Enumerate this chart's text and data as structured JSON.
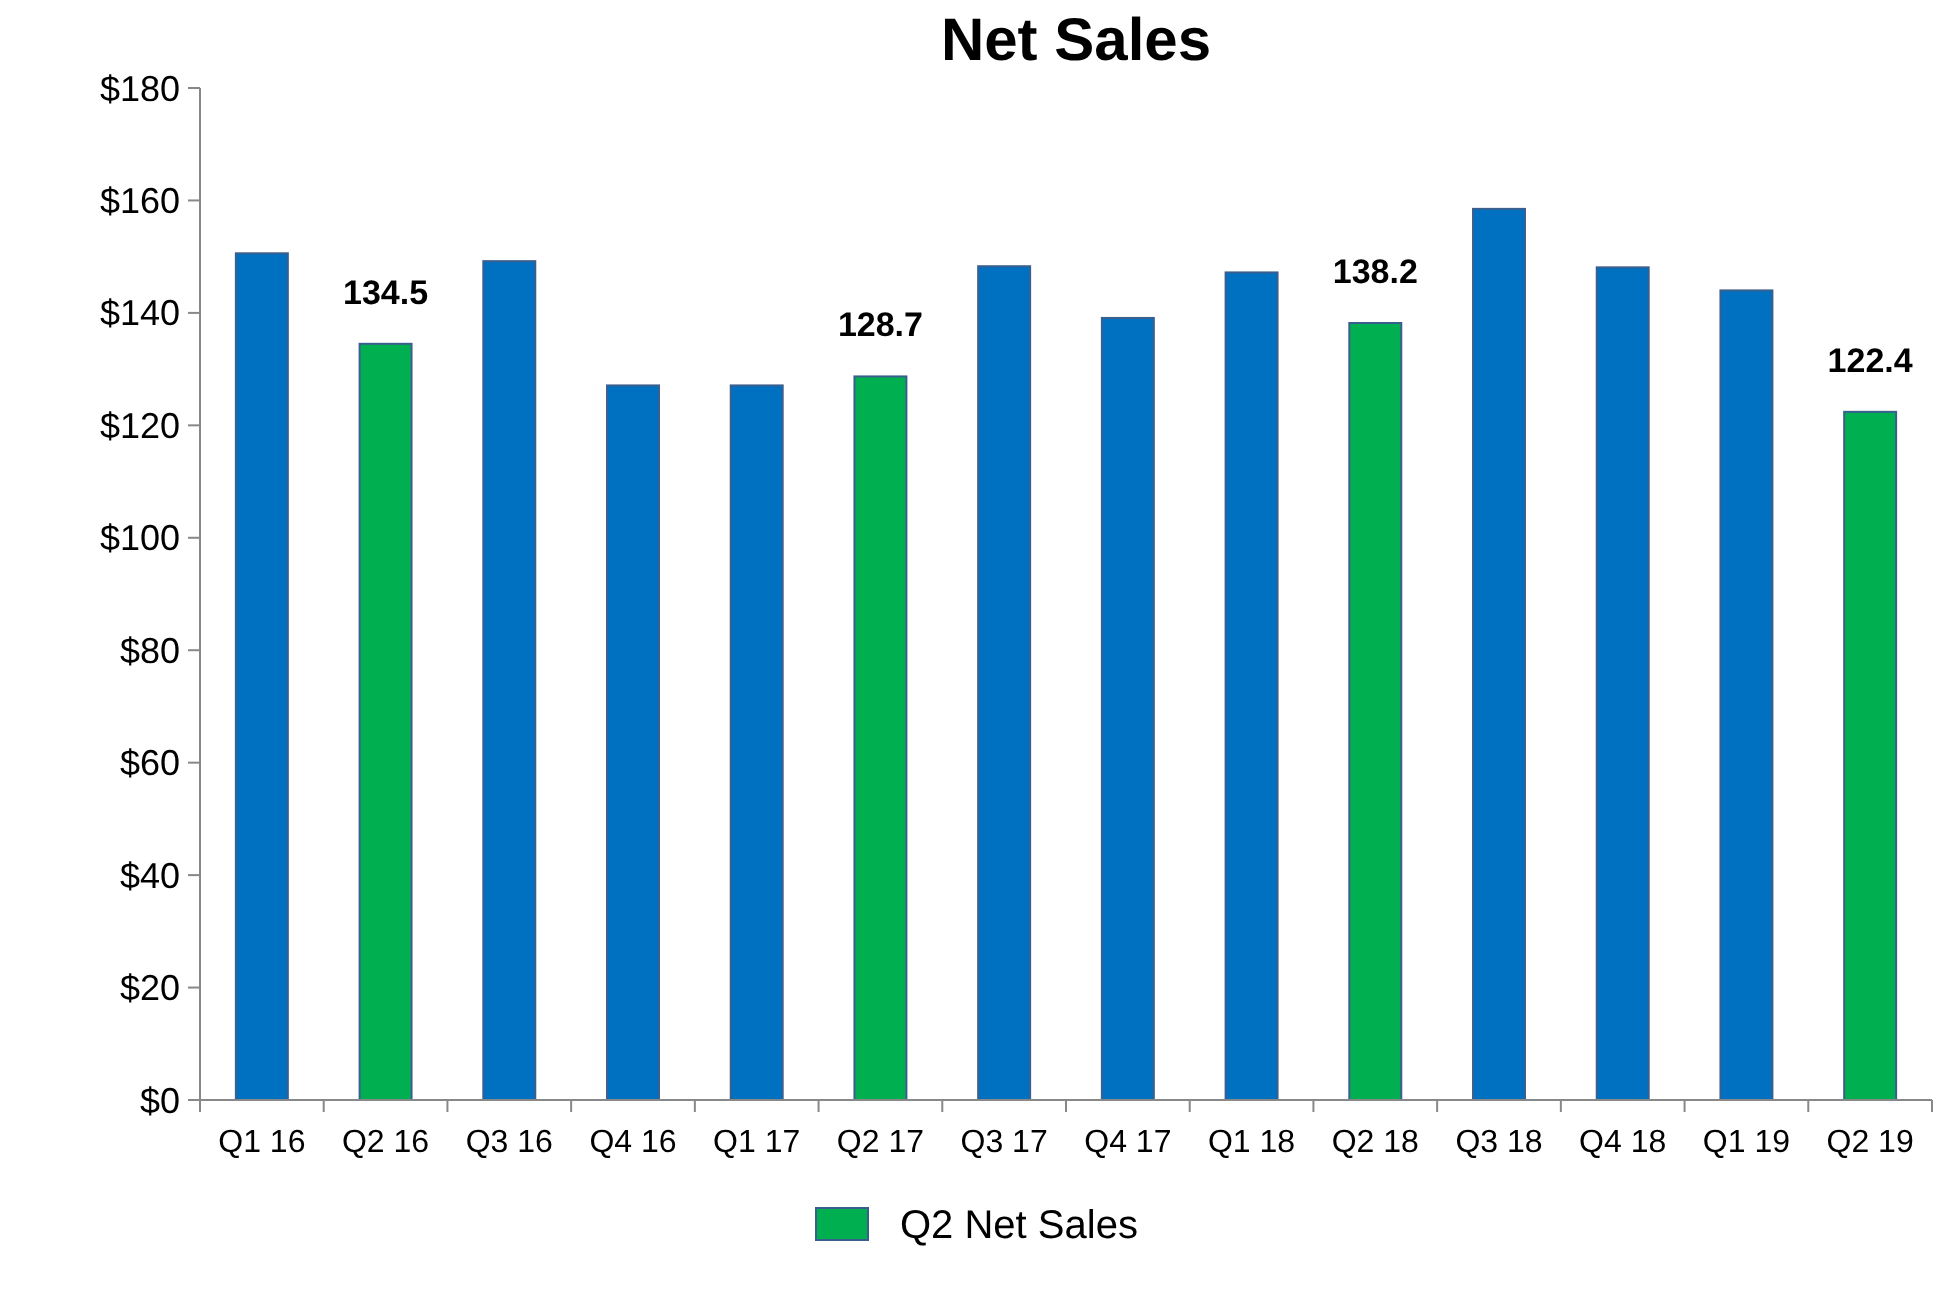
{
  "chart_data": {
    "type": "bar",
    "title": "Net Sales",
    "categories": [
      "Q1 16",
      "Q2 16",
      "Q3 16",
      "Q4 16",
      "Q1 17",
      "Q2 17",
      "Q3 17",
      "Q4 17",
      "Q1 18",
      "Q2 18",
      "Q3 18",
      "Q4 18",
      "Q1 19",
      "Q2 19"
    ],
    "series": [
      {
        "color": "#0070c0",
        "values": [
          150.6,
          null,
          149.2,
          127.1,
          127.1,
          null,
          148.3,
          139.1,
          147.2,
          null,
          158.5,
          148.1,
          144.0,
          null
        ]
      },
      {
        "name": "Q2 Net Sales",
        "color": "#00b050",
        "values": [
          null,
          134.5,
          null,
          null,
          null,
          128.7,
          null,
          null,
          null,
          138.2,
          null,
          null,
          null,
          122.4
        ],
        "value_labels": [
          null,
          "134.5",
          null,
          null,
          null,
          "128.7",
          null,
          null,
          null,
          "138.2",
          null,
          null,
          null,
          "122.4"
        ]
      }
    ],
    "ylim": [
      0,
      180
    ],
    "yticks": [
      {
        "value": 0,
        "label": "$0"
      },
      {
        "value": 20,
        "label": "$20"
      },
      {
        "value": 40,
        "label": "$40"
      },
      {
        "value": 60,
        "label": "$60"
      },
      {
        "value": 80,
        "label": "$80"
      },
      {
        "value": 100,
        "label": "$100"
      },
      {
        "value": 120,
        "label": "$120"
      },
      {
        "value": 140,
        "label": "$140"
      },
      {
        "value": 160,
        "label": "$160"
      },
      {
        "value": 180,
        "label": "$180"
      }
    ],
    "grid": false,
    "legend": "bottom"
  }
}
